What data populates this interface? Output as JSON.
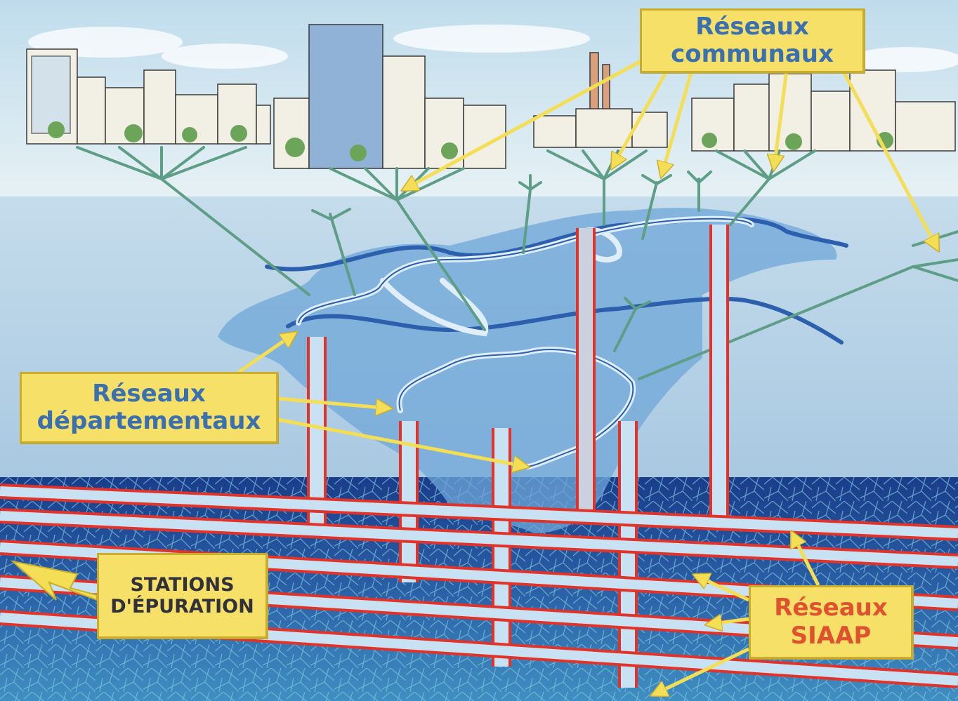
{
  "labels": {
    "reseaux_communaux": {
      "line1": "Réseaux",
      "line2": "communaux"
    },
    "reseaux_departementaux": {
      "line1": "Réseaux",
      "line2": "départementaux"
    },
    "stations_epuration": {
      "line1": "STATIONS",
      "line2": "D'ÉPURATION"
    },
    "reseaux_siaap": {
      "line1": "Réseaux",
      "line2": "SIAAP"
    }
  },
  "colors": {
    "sky": "#cfe6ef",
    "ground": "#bcd4e6",
    "basin": "#6fa7d8",
    "deep_layer": "#1d3f8c",
    "pipe_outline": "#e0342a",
    "label_fill": "#f6e067",
    "label_text_blue": "#3a6fb0",
    "label_text_red": "#e0522f",
    "arrow": "#f3de55"
  }
}
